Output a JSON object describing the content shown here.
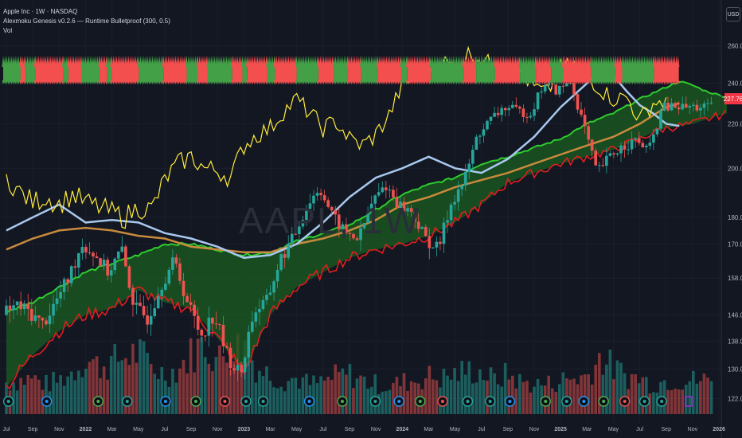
{
  "header": {
    "symbol": "Apple Inc · 1W · NASDAQ",
    "indicator": "Alexmoku Genesis v0.2.6 — Runtime Bulletproof (300, 0.5)",
    "volume": "Vol",
    "watermark": "AAPL, 1W",
    "currency": "USD",
    "last_price": "227.76"
  },
  "colors": {
    "background": "#131722",
    "up": "#26a69a",
    "down": "#ef5350",
    "cloud_top": "#2ecc2e",
    "cloud_bottom": "#e01e1e",
    "cloud_fill": "#1b5e20",
    "yellow_line": "#ffeb3b",
    "blue_line": "#a8c8ee",
    "orange_line": "#c88a3c"
  },
  "chart_data": {
    "type": "candlestick",
    "axes": {
      "y_ticks": [
        260,
        240,
        220,
        200,
        180,
        170,
        158,
        146,
        138,
        130,
        122
      ],
      "y_tick_labels": [
        "260.00",
        "240.00",
        "220.00",
        "200.00",
        "180.00",
        "170.00",
        "158.00",
        "146.00",
        "138.00",
        "130.00",
        "122.00"
      ],
      "x_ticks": [
        {
          "t": 0,
          "label": "Jul"
        },
        {
          "t": 2,
          "label": "Sep"
        },
        {
          "t": 4,
          "label": "Nov"
        },
        {
          "t": 6,
          "label": "2022"
        },
        {
          "t": 8,
          "label": "Mar"
        },
        {
          "t": 10,
          "label": "May"
        },
        {
          "t": 12,
          "label": "Jul"
        },
        {
          "t": 14,
          "label": "Sep"
        },
        {
          "t": 16,
          "label": "Nov"
        },
        {
          "t": 18,
          "label": "2023"
        },
        {
          "t": 20,
          "label": "Mar"
        },
        {
          "t": 22,
          "label": "May"
        },
        {
          "t": 24,
          "label": "Jul"
        },
        {
          "t": 26,
          "label": "Sep"
        },
        {
          "t": 28,
          "label": "Nov"
        },
        {
          "t": 30,
          "label": "2024"
        },
        {
          "t": 32,
          "label": "Mar"
        },
        {
          "t": 34,
          "label": "May"
        },
        {
          "t": 36,
          "label": "Jul"
        },
        {
          "t": 38,
          "label": "Sep"
        },
        {
          "t": 40,
          "label": "Nov"
        },
        {
          "t": 42,
          "label": "2025"
        },
        {
          "t": 44,
          "label": "Mar"
        },
        {
          "t": 46,
          "label": "May"
        },
        {
          "t": 48,
          "label": "Jul"
        },
        {
          "t": 50,
          "label": "Sep"
        },
        {
          "t": 52,
          "label": "Nov"
        },
        {
          "t": 54,
          "label": "2026"
        }
      ],
      "y_range": [
        118,
        268
      ],
      "x_range": [
        0,
        54.6
      ]
    },
    "time_unit": "months since Jul 2021",
    "price": [
      [
        0,
        146
      ],
      [
        1,
        149
      ],
      [
        2,
        147
      ],
      [
        3,
        143
      ],
      [
        4,
        150
      ],
      [
        5,
        158
      ],
      [
        6,
        170
      ],
      [
        7,
        166
      ],
      [
        8,
        160
      ],
      [
        9,
        168
      ],
      [
        10,
        148
      ],
      [
        11,
        145
      ],
      [
        12,
        156
      ],
      [
        13,
        164
      ],
      [
        14,
        150
      ],
      [
        15,
        140
      ],
      [
        16,
        146
      ],
      [
        17,
        134
      ],
      [
        18,
        128
      ],
      [
        19,
        147
      ],
      [
        20,
        150
      ],
      [
        21,
        164
      ],
      [
        22,
        172
      ],
      [
        23,
        184
      ],
      [
        24,
        192
      ],
      [
        25,
        180
      ],
      [
        26,
        174
      ],
      [
        27,
        172
      ],
      [
        28,
        186
      ],
      [
        29,
        193
      ],
      [
        30,
        185
      ],
      [
        31,
        182
      ],
      [
        32,
        172
      ],
      [
        33,
        168
      ],
      [
        34,
        186
      ],
      [
        35,
        195
      ],
      [
        36,
        215
      ],
      [
        37,
        222
      ],
      [
        38,
        228
      ],
      [
        39,
        226
      ],
      [
        40,
        225
      ],
      [
        41,
        240
      ],
      [
        42,
        236
      ],
      [
        43,
        241
      ],
      [
        44,
        220
      ],
      [
        45,
        198
      ],
      [
        46,
        205
      ],
      [
        47,
        210
      ],
      [
        48,
        212
      ],
      [
        49,
        208
      ],
      [
        50,
        228
      ]
    ],
    "cloud_top": [
      [
        0,
        147
      ],
      [
        2,
        150
      ],
      [
        4,
        155
      ],
      [
        6,
        160
      ],
      [
        8,
        163
      ],
      [
        10,
        166
      ],
      [
        12,
        170
      ],
      [
        14,
        170
      ],
      [
        16,
        168
      ],
      [
        18,
        166
      ],
      [
        20,
        167
      ],
      [
        22,
        171
      ],
      [
        24,
        174
      ],
      [
        26,
        177
      ],
      [
        28,
        183
      ],
      [
        30,
        189
      ],
      [
        32,
        193
      ],
      [
        34,
        196
      ],
      [
        36,
        202
      ],
      [
        38,
        205
      ],
      [
        40,
        209
      ],
      [
        42,
        213
      ],
      [
        44,
        220
      ],
      [
        46,
        225
      ],
      [
        48,
        232
      ],
      [
        49,
        235
      ],
      [
        50,
        238
      ],
      [
        51,
        241
      ],
      [
        52,
        239
      ],
      [
        53,
        236
      ],
      [
        54,
        234
      ],
      [
        54.6,
        233
      ]
    ],
    "cloud_bottom": [
      [
        0,
        125
      ],
      [
        2,
        134
      ],
      [
        4,
        141
      ],
      [
        6,
        146
      ],
      [
        8,
        148
      ],
      [
        10,
        154
      ],
      [
        12,
        150
      ],
      [
        14,
        148
      ],
      [
        16,
        139
      ],
      [
        18,
        129
      ],
      [
        20,
        146
      ],
      [
        22,
        155
      ],
      [
        24,
        160
      ],
      [
        26,
        165
      ],
      [
        28,
        168
      ],
      [
        30,
        170
      ],
      [
        32,
        173
      ],
      [
        34,
        178
      ],
      [
        36,
        185
      ],
      [
        38,
        194
      ],
      [
        40,
        198
      ],
      [
        42,
        202
      ],
      [
        44,
        205
      ],
      [
        46,
        208
      ],
      [
        48,
        213
      ],
      [
        49,
        216
      ],
      [
        50,
        218
      ],
      [
        51,
        219
      ],
      [
        52,
        220
      ],
      [
        53,
        222
      ],
      [
        54,
        224
      ],
      [
        54.6,
        225
      ]
    ],
    "yellow_line": [
      [
        0,
        196
      ],
      [
        1,
        190
      ],
      [
        2,
        186
      ],
      [
        3,
        188
      ],
      [
        4,
        185
      ],
      [
        5,
        189
      ],
      [
        6,
        186
      ],
      [
        7,
        184
      ],
      [
        8,
        182
      ],
      [
        9,
        180
      ],
      [
        10,
        184
      ],
      [
        11,
        183
      ],
      [
        12,
        195
      ],
      [
        13,
        202
      ],
      [
        14,
        205
      ],
      [
        15,
        200
      ],
      [
        16,
        199
      ],
      [
        17,
        196
      ],
      [
        18,
        210
      ],
      [
        19,
        215
      ],
      [
        20,
        218
      ],
      [
        21,
        226
      ],
      [
        22,
        232
      ],
      [
        23,
        225
      ],
      [
        24,
        218
      ],
      [
        25,
        221
      ],
      [
        26,
        213
      ],
      [
        27,
        210
      ],
      [
        28,
        215
      ],
      [
        29,
        224
      ],
      [
        30,
        239
      ],
      [
        31,
        243
      ],
      [
        32,
        247
      ],
      [
        33,
        252
      ],
      [
        34,
        248
      ],
      [
        35,
        256
      ],
      [
        36,
        253
      ],
      [
        37,
        249
      ],
      [
        38,
        252
      ],
      [
        39,
        245
      ],
      [
        40,
        238
      ],
      [
        41,
        235
      ],
      [
        42,
        248
      ],
      [
        43,
        250
      ],
      [
        44,
        244
      ],
      [
        45,
        237
      ],
      [
        46,
        232
      ],
      [
        47,
        233
      ],
      [
        48,
        222
      ],
      [
        49,
        230
      ],
      [
        50,
        231
      ]
    ],
    "blue_line": [
      [
        0,
        175
      ],
      [
        2,
        180
      ],
      [
        4,
        185
      ],
      [
        6,
        178
      ],
      [
        8,
        179
      ],
      [
        10,
        178
      ],
      [
        12,
        174
      ],
      [
        14,
        172
      ],
      [
        16,
        169
      ],
      [
        18,
        165
      ],
      [
        20,
        166
      ],
      [
        22,
        170
      ],
      [
        24,
        178
      ],
      [
        26,
        188
      ],
      [
        28,
        196
      ],
      [
        30,
        200
      ],
      [
        32,
        205
      ],
      [
        34,
        200
      ],
      [
        36,
        198
      ],
      [
        38,
        204
      ],
      [
        40,
        214
      ],
      [
        42,
        228
      ],
      [
        44,
        240
      ],
      [
        45,
        247
      ],
      [
        46,
        244
      ],
      [
        47,
        236
      ],
      [
        48,
        229
      ],
      [
        49,
        225
      ],
      [
        50,
        220
      ],
      [
        51,
        219
      ]
    ],
    "orange_line": [
      [
        0,
        168
      ],
      [
        2,
        172
      ],
      [
        4,
        175
      ],
      [
        6,
        176
      ],
      [
        8,
        175
      ],
      [
        10,
        173
      ],
      [
        12,
        172
      ],
      [
        14,
        169
      ],
      [
        16,
        168
      ],
      [
        18,
        167
      ],
      [
        20,
        167
      ],
      [
        22,
        170
      ],
      [
        24,
        172
      ],
      [
        26,
        175
      ],
      [
        28,
        179
      ],
      [
        30,
        185
      ],
      [
        32,
        188
      ],
      [
        34,
        192
      ],
      [
        36,
        195
      ],
      [
        38,
        198
      ],
      [
        40,
        202
      ],
      [
        42,
        206
      ],
      [
        44,
        210
      ],
      [
        46,
        214
      ],
      [
        48,
        220
      ],
      [
        49,
        224
      ],
      [
        50,
        228
      ],
      [
        51,
        230
      ]
    ],
    "volume": [
      [
        0,
        32
      ],
      [
        1,
        34
      ],
      [
        2,
        36
      ],
      [
        3,
        30
      ],
      [
        4,
        34
      ],
      [
        5,
        42
      ],
      [
        6,
        56
      ],
      [
        7,
        48
      ],
      [
        8,
        52
      ],
      [
        9,
        58
      ],
      [
        10,
        62
      ],
      [
        11,
        48
      ],
      [
        12,
        40
      ],
      [
        13,
        45
      ],
      [
        14,
        60
      ],
      [
        15,
        72
      ],
      [
        16,
        54
      ],
      [
        17,
        64
      ],
      [
        18,
        70
      ],
      [
        19,
        46
      ],
      [
        20,
        40
      ],
      [
        21,
        34
      ],
      [
        22,
        36
      ],
      [
        23,
        30
      ],
      [
        24,
        32
      ],
      [
        25,
        38
      ],
      [
        26,
        40
      ],
      [
        27,
        34
      ],
      [
        28,
        30
      ],
      [
        29,
        28
      ],
      [
        30,
        32
      ],
      [
        31,
        34
      ],
      [
        32,
        38
      ],
      [
        33,
        36
      ],
      [
        34,
        40
      ],
      [
        35,
        44
      ],
      [
        36,
        42
      ],
      [
        37,
        34
      ],
      [
        38,
        40
      ],
      [
        39,
        32
      ],
      [
        40,
        30
      ],
      [
        41,
        30
      ],
      [
        42,
        34
      ],
      [
        43,
        36
      ],
      [
        44,
        38
      ],
      [
        45,
        58
      ],
      [
        46,
        46
      ],
      [
        47,
        38
      ],
      [
        48,
        36
      ],
      [
        49,
        30
      ],
      [
        50,
        34
      ]
    ]
  }
}
